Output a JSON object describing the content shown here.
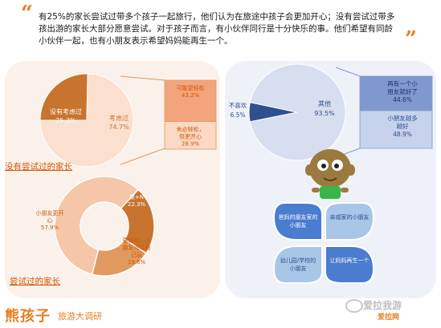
{
  "header": {
    "text": "有25%的家长尝试过带多个孩子一起旅行，他们认为在旅途中孩子会更加开心；没有尝试过带多孩出游的家长大部分愿意尝试。对于孩子而言，有小伙伴同行是十分快乐的事。他们希望有同龄小伙伴一起，也有小朋友表示希望妈妈能再生一个。",
    "open_quote": "“",
    "close_quote": "”"
  },
  "labels": {
    "not_tried": "没有尝试过的家长",
    "tried": "尝试过的家长"
  },
  "branding": {
    "logo": "熊孩子",
    "subtitle": "旅游大调研",
    "watermark": "爱拉我游",
    "watermark_sub": "爱拉网"
  },
  "colors": {
    "orange_dark": "#c8742e",
    "orange_light": "#f6c6a8",
    "orange_pale": "#fbe0cf",
    "orange_mid": "#f2a57c",
    "blue_dark": "#2f4f8f",
    "blue_mid": "#7f99d0",
    "blue_light": "#d6deef",
    "accent": "#e67e22"
  },
  "chart_data": [
    {
      "type": "pie",
      "labels": [
        "没有考虑过",
        "考虑过"
      ],
      "values": [
        25.3,
        74.7
      ],
      "value_labels": [
        "25.3%",
        "74.7%"
      ],
      "colors": [
        "#c8742e",
        "#fbe0cf"
      ]
    },
    {
      "type": "bar",
      "stacked": true,
      "categories": [
        "可能更轻松",
        "未必轻松，但更开心"
      ],
      "values": [
        43.2,
        28.9
      ],
      "value_labels": [
        "43.2%",
        "28.9%"
      ],
      "colors": [
        "#f2a57c",
        "#fbd9c4"
      ]
    },
    {
      "type": "pie",
      "donut": true,
      "labels": [
        "小朋友更开心",
        "累+N",
        "更轻松，小朋友可以自己玩"
      ],
      "values": [
        57.9,
        22.3,
        19.8
      ],
      "value_labels": [
        "57.9%",
        "22.3%",
        "19.8%"
      ],
      "colors": [
        "#f6c6a8",
        "#c8742e",
        "#e0995e"
      ]
    },
    {
      "type": "pie",
      "labels": [
        "不喜欢",
        "其他"
      ],
      "values": [
        6.5,
        93.5
      ],
      "value_labels": [
        "6.5%",
        "93.5%"
      ],
      "colors": [
        "#2f4f8f",
        "#d6deef"
      ]
    },
    {
      "type": "bar",
      "stacked": true,
      "categories": [
        "再有一个小朋友就好了",
        "小朋友越多越好"
      ],
      "values": [
        44.6,
        48.9
      ],
      "value_labels": [
        "44.6%",
        "48.9%"
      ],
      "colors": [
        "#7f99d0",
        "#c7d3ec"
      ]
    },
    {
      "type": "table",
      "items": [
        "爸妈的朋友家的小朋友",
        "亲戚家的小朋友",
        "幼儿园/学校的小朋友",
        "让妈妈再生一个"
      ],
      "colors": [
        "#4a7ccf",
        "#a8c6e8",
        "#a8c6e8",
        "#4a7ccf"
      ]
    }
  ]
}
